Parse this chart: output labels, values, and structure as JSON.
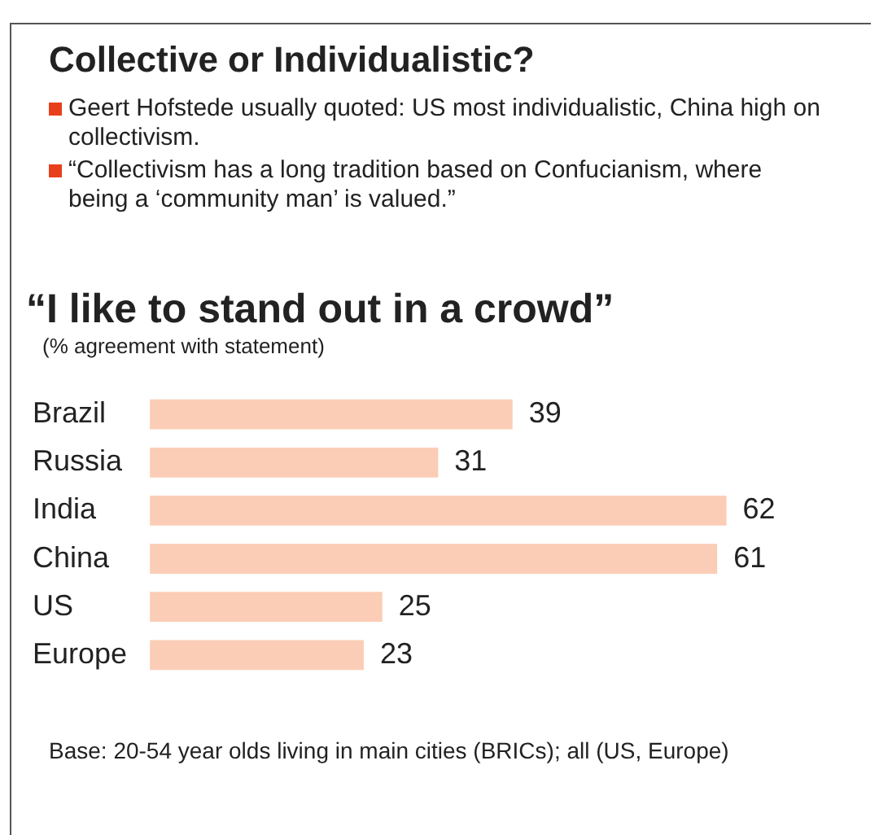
{
  "chart_data": {
    "type": "bar",
    "orientation": "horizontal",
    "title": "Collective or Individualistic?",
    "subtitle": "“I like to stand out in a crowd”",
    "xlabel": "(% agreement with statement)",
    "annotations": [
      "Geert Hofstede usually quoted: US most individualistic, China high on collectivism.",
      "“Collectivism has a long tradition based on Confucianism, where being a ‘community man’ is valued.”",
      "Base: 20-54 year olds living in main cities (BRICs); all (US, Europe)"
    ],
    "categories": [
      "Brazil",
      "Russia",
      "India",
      "China",
      "US",
      "Europe"
    ],
    "values": [
      39,
      31,
      62,
      61,
      25,
      23
    ],
    "color": "#fbcdb6",
    "data_labels": true,
    "legend": false
  }
}
